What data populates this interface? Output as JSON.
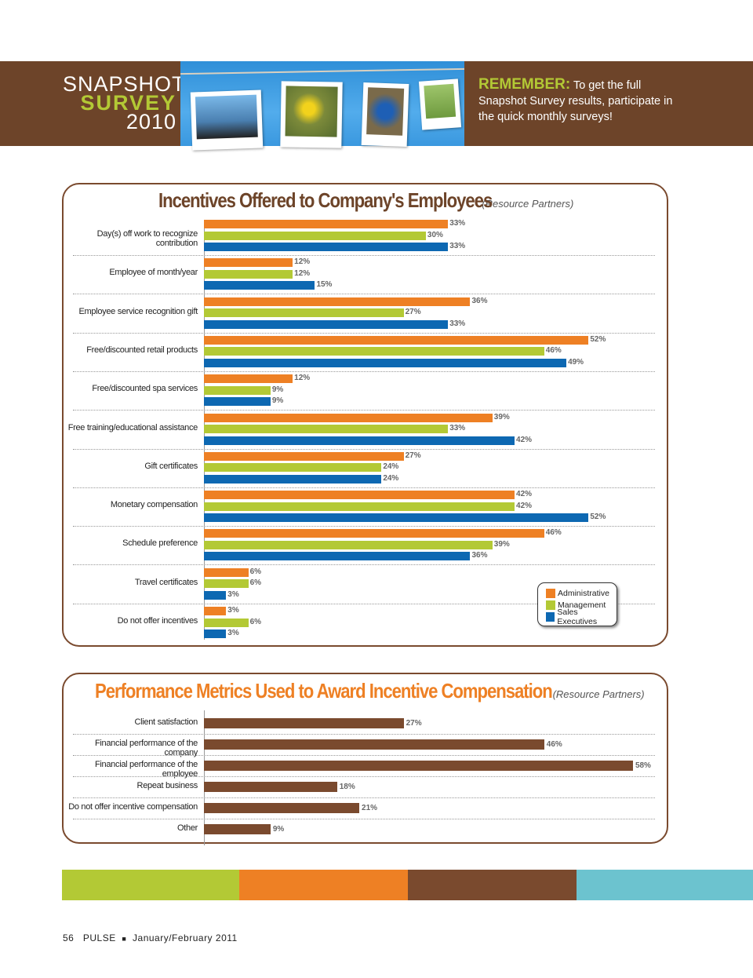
{
  "header": {
    "line1": "SNAPSHOT",
    "line2": "SURVEY",
    "line3": "2010",
    "remember_label": "REMEMBER:",
    "remember_text": "To get the full Snapshot Survey results, participate in the quick monthly surveys!"
  },
  "colors": {
    "administrative": "#ee8024",
    "management": "#b3c935",
    "sales": "#0d68b2",
    "brown": "#7a4a2e",
    "teal": "#6cc3cf"
  },
  "chart_data": [
    {
      "type": "bar",
      "orientation": "horizontal",
      "title": "Incentives Offered to Company's Employees",
      "subtitle": "(Resource Partners)",
      "xlim": [
        0,
        60
      ],
      "grid": false,
      "legend_position": "bottom-right",
      "categories": [
        "Day(s) off work to recognize contribution",
        "Employee of month/year",
        "Employee service recognition gift",
        "Free/discounted retail products",
        "Free/discounted spa services",
        "Free training/educational assistance",
        "Gift certificates",
        "Monetary compensation",
        "Schedule preference",
        "Travel certificates",
        "Do not offer incentives"
      ],
      "series": [
        {
          "name": "Administrative",
          "values": [
            33,
            12,
            36,
            52,
            12,
            39,
            27,
            42,
            46,
            6,
            3
          ]
        },
        {
          "name": "Management",
          "values": [
            30,
            12,
            27,
            46,
            9,
            33,
            24,
            42,
            39,
            6,
            6
          ]
        },
        {
          "name": "Sales Executives",
          "values": [
            33,
            15,
            33,
            49,
            9,
            42,
            24,
            52,
            36,
            3,
            3
          ]
        }
      ]
    },
    {
      "type": "bar",
      "orientation": "horizontal",
      "title": "Performance Metrics Used to Award Incentive Compensation",
      "subtitle": "(Resource Partners)",
      "xlim": [
        0,
        60
      ],
      "grid": false,
      "categories": [
        "Client satisfaction",
        "Financial performance of the company",
        "Financial performance of the employee",
        "Repeat business",
        "Do not offer incentive compensation",
        "Other"
      ],
      "values": [
        27,
        46,
        58,
        18,
        21,
        9
      ]
    }
  ],
  "footer": {
    "page": "56",
    "magazine": "PULSE",
    "issue": "January/February 2011"
  }
}
